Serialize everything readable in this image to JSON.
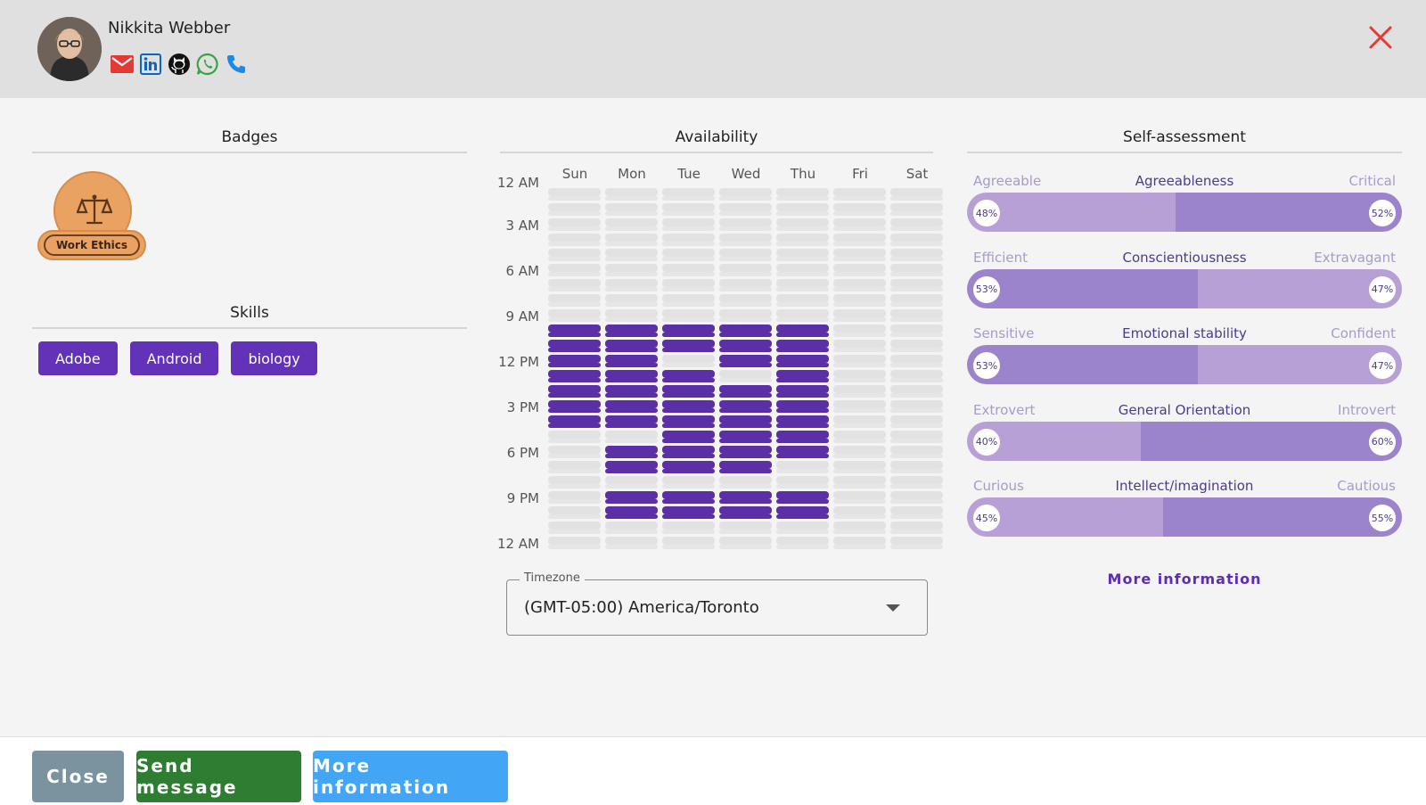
{
  "profile": {
    "name": "Nikkita Webber",
    "contacts": [
      {
        "icon": "email-icon",
        "color": "#e53935"
      },
      {
        "icon": "linkedin-icon",
        "color": "#0a66c2"
      },
      {
        "icon": "github-icon",
        "color": "#111111"
      },
      {
        "icon": "whatsapp-icon",
        "color": "#3aa245"
      },
      {
        "icon": "phone-icon",
        "color": "#1e88e5"
      }
    ]
  },
  "sections": {
    "badges": "Badges",
    "skills": "Skills",
    "availability": "Availability",
    "self_assessment": "Self-assessment"
  },
  "badges": [
    {
      "label": "Work Ethics",
      "icon": "scales-icon",
      "color": "#eaa262"
    }
  ],
  "skills": [
    "Adobe",
    "Android",
    "biology"
  ],
  "availability": {
    "days": [
      "Sun",
      "Mon",
      "Tue",
      "Wed",
      "Thu",
      "Fri",
      "Sat"
    ],
    "time_labels": [
      "12 AM",
      "3 AM",
      "6 AM",
      "9 AM",
      "12 PM",
      "3 PM",
      "6 PM",
      "9 PM",
      "12 AM"
    ],
    "slots_per_day": 24,
    "available_hours": {
      "Sun": [
        9,
        10,
        11,
        12,
        13,
        14,
        15
      ],
      "Mon": [
        9,
        10,
        11,
        12,
        13,
        14,
        15,
        17,
        18,
        20,
        21
      ],
      "Tue": [
        9,
        10,
        12,
        13,
        14,
        15,
        16,
        17,
        18,
        20,
        21
      ],
      "Wed": [
        9,
        10,
        11,
        13,
        14,
        15,
        16,
        17,
        18,
        20,
        21
      ],
      "Thu": [
        9,
        10,
        11,
        12,
        13,
        14,
        15,
        16,
        17,
        20,
        21
      ],
      "Fri": [],
      "Sat": []
    },
    "colors": {
      "available": "#5b2fa5",
      "unavailable": "#e2e2e2"
    }
  },
  "timezone": {
    "label": "Timezone",
    "value": "(GMT-05:00) America/Toronto"
  },
  "self_assessment": [
    {
      "left": "Agreeable",
      "center": "Agreeableness",
      "right": "Critical",
      "left_pct": 48,
      "right_pct": 52,
      "left_label": "48%",
      "right_label": "52%"
    },
    {
      "left": "Efficient",
      "center": "Conscientiousness",
      "right": "Extravagant",
      "left_pct": 53,
      "right_pct": 47,
      "left_label": "53%",
      "right_label": "47%"
    },
    {
      "left": "Sensitive",
      "center": "Emotional stability",
      "right": "Confident",
      "left_pct": 53,
      "right_pct": 47,
      "left_label": "53%",
      "right_label": "47%"
    },
    {
      "left": "Extrovert",
      "center": "General Orientation",
      "right": "Introvert",
      "left_pct": 40,
      "right_pct": 60,
      "left_label": "40%",
      "right_label": "60%"
    },
    {
      "left": "Curious",
      "center": "Intellect/imagination",
      "right": "Cautious",
      "left_pct": 45,
      "right_pct": 55,
      "left_label": "45%",
      "right_label": "55%"
    }
  ],
  "self_assessment_link": "More information",
  "footer": {
    "close": "Close",
    "send_message": "Send message",
    "more_information": "More information"
  },
  "colors": {
    "accent": "#6232b8",
    "close_button": "#7b939f",
    "send_button": "#2e7d32",
    "more_button": "#42a5f5",
    "close_icon": "#e53935",
    "bar_light": "#b6a0d6",
    "bar_dark": "#9c84cc"
  }
}
